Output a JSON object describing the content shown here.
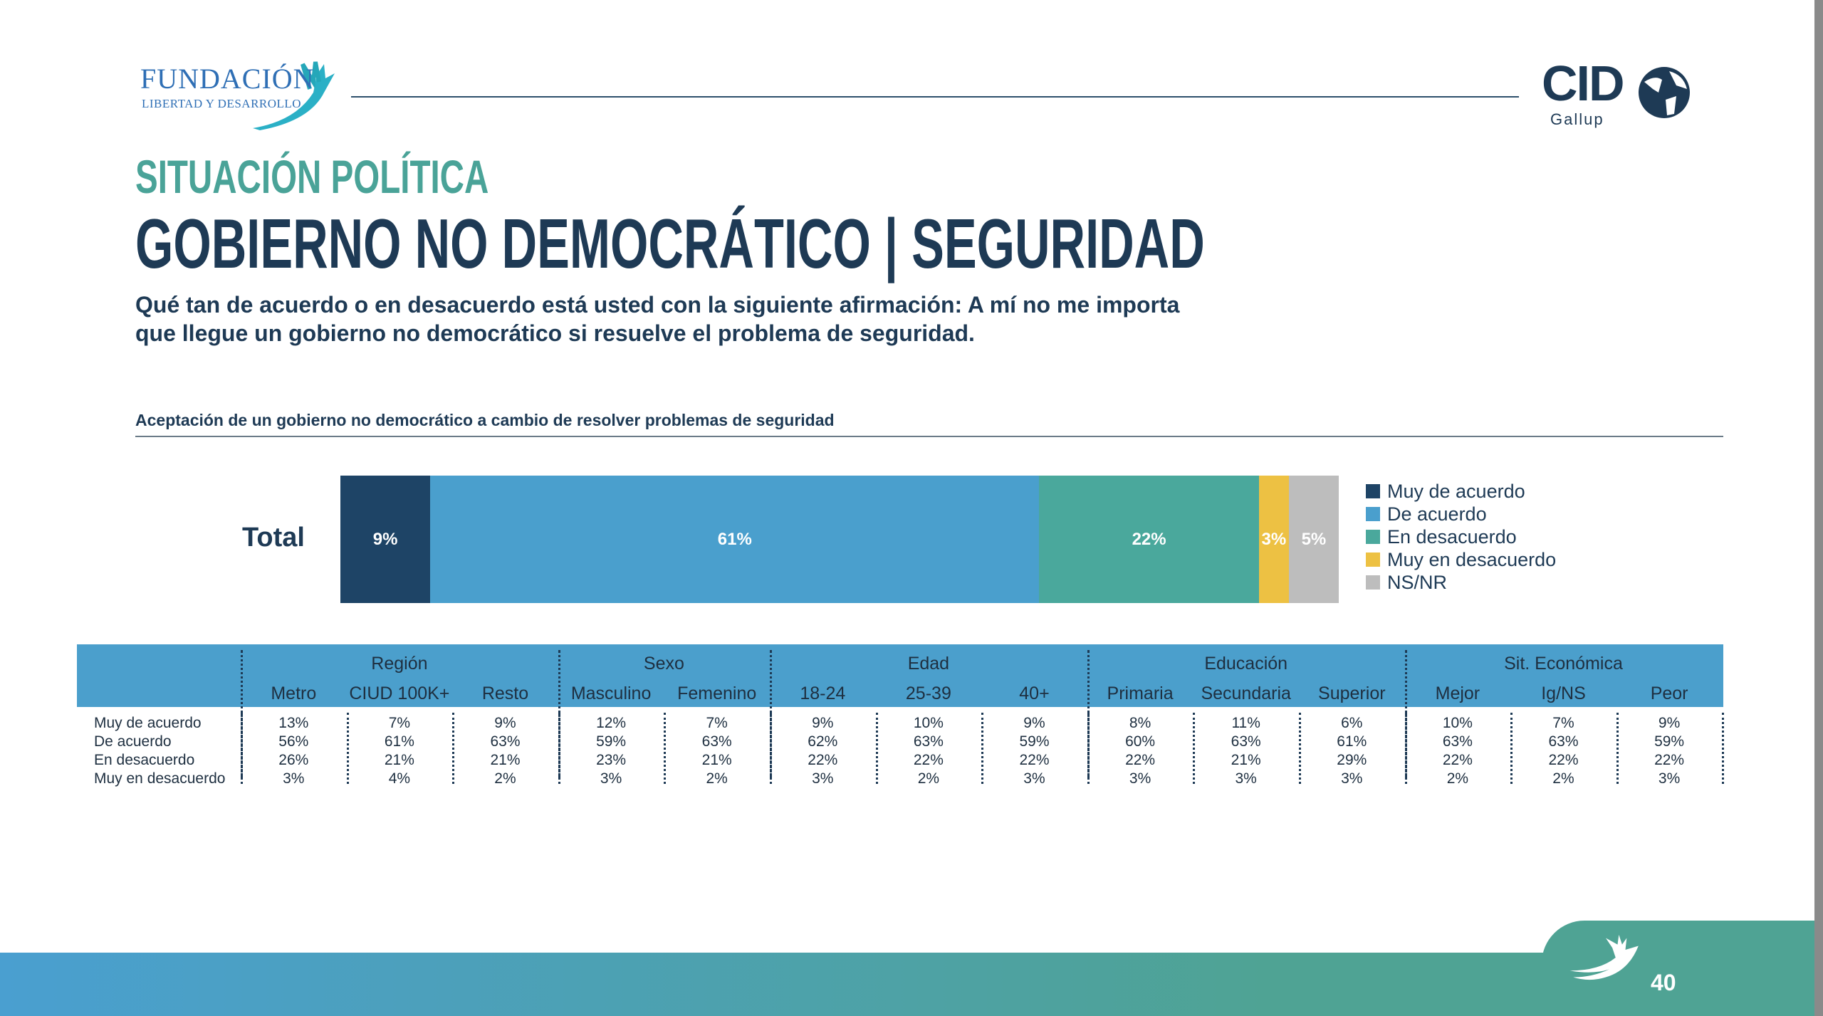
{
  "header": {
    "logo_left_line1": "FUNDACIÓN",
    "logo_left_line2": "LIBERTAD Y DESARROLLO",
    "logo_right": "CID",
    "logo_right_sub": "Gallup"
  },
  "section": "SITUACIÓN POLÍTICA",
  "title": "GOBIERNO NO DEMOCRÁTICO | SEGURIDAD",
  "question": "Qué tan de acuerdo o en desacuerdo está usted con la siguiente afirmación: A mí no me importa que llegue un gobierno no democrático si resuelve el problema de seguridad.",
  "page_number": "40",
  "chart_data": {
    "type": "bar",
    "orientation": "horizontal-stacked",
    "title": "Aceptación de un gobierno no democrático a cambio de resolver problemas de seguridad",
    "categories": [
      "Total"
    ],
    "series": [
      {
        "name": "Muy de acuerdo",
        "values": [
          9
        ],
        "label": "9%",
        "color": "#1e4466"
      },
      {
        "name": "De acuerdo",
        "values": [
          61
        ],
        "label": "61%",
        "color": "#4a9fcd"
      },
      {
        "name": "En desacuerdo",
        "values": [
          22
        ],
        "label": "22%",
        "color": "#4aa89c"
      },
      {
        "name": "Muy en desacuerdo",
        "values": [
          3
        ],
        "label": "3%",
        "color": "#edc143"
      },
      {
        "name": "NS/NR",
        "values": [
          5
        ],
        "label": "5%",
        "color": "#bdbdbd"
      }
    ],
    "legend": "right"
  },
  "table": {
    "groups": [
      {
        "label": "Región",
        "span": 3
      },
      {
        "label": "Sexo",
        "span": 2
      },
      {
        "label": "Edad",
        "span": 3
      },
      {
        "label": "Educación",
        "span": 3
      },
      {
        "label": "Sit. Económica",
        "span": 3
      }
    ],
    "columns": [
      "Metro",
      "CIUD 100K+",
      "Resto",
      "Masculino",
      "Femenino",
      "18-24",
      "25-39",
      "40+",
      "Primaria",
      "Secundaria",
      "Superior",
      "Mejor",
      "Ig/NS",
      "Peor"
    ],
    "rows": [
      {
        "label": "Muy de acuerdo",
        "values": [
          "13%",
          "7%",
          "9%",
          "12%",
          "7%",
          "9%",
          "10%",
          "9%",
          "8%",
          "11%",
          "6%",
          "10%",
          "7%",
          "9%"
        ]
      },
      {
        "label": "De acuerdo",
        "values": [
          "56%",
          "61%",
          "63%",
          "59%",
          "63%",
          "62%",
          "63%",
          "59%",
          "60%",
          "63%",
          "61%",
          "63%",
          "63%",
          "59%"
        ]
      },
      {
        "label": "En desacuerdo",
        "values": [
          "26%",
          "21%",
          "21%",
          "23%",
          "21%",
          "22%",
          "22%",
          "22%",
          "22%",
          "21%",
          "29%",
          "22%",
          "22%",
          "22%"
        ]
      },
      {
        "label": "Muy en desacuerdo",
        "values": [
          "3%",
          "4%",
          "2%",
          "3%",
          "2%",
          "3%",
          "2%",
          "3%",
          "3%",
          "3%",
          "3%",
          "2%",
          "2%",
          "3%"
        ]
      }
    ]
  }
}
